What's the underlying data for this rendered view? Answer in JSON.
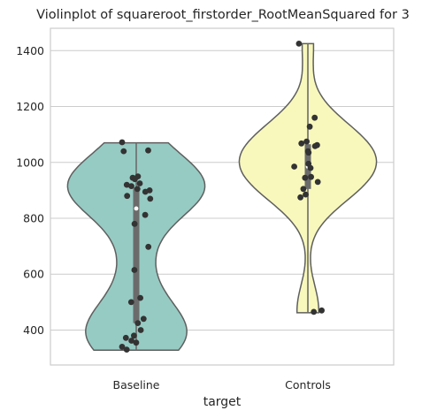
{
  "chart_data": {
    "type": "violin",
    "title": "Violinplot of squareroot_firstorder_RootMeanSquared for 3",
    "xlabel": "target",
    "ylabel": "",
    "ylim": [
      275,
      1480
    ],
    "yticks": [
      400,
      600,
      800,
      1000,
      1200,
      1400
    ],
    "grid": "horizontal",
    "categories": [
      "Baseline",
      "Controls"
    ],
    "colors": {
      "Baseline": "#96cbc3",
      "Controls": "#f8f8bd",
      "outline": "#5f5f5f",
      "points": "#333333",
      "box": "#6b6b6b"
    },
    "series": [
      {
        "name": "Baseline",
        "range": [
          328,
          1070
        ],
        "quartiles": [
          425,
          835,
          910
        ],
        "median": 835,
        "points": [
          1072,
          1043,
          1040,
          950,
          945,
          940,
          925,
          920,
          915,
          905,
          900,
          895,
          880,
          870,
          812,
          780,
          698,
          615,
          515,
          500,
          440,
          425,
          400,
          380,
          372,
          362,
          355,
          340,
          330
        ]
      },
      {
        "name": "Controls",
        "range": [
          462,
          1425
        ],
        "quartiles": [
          905,
          985,
          1065
        ],
        "median": 985,
        "points": [
          1425,
          1160,
          1128,
          1075,
          1068,
          1062,
          1058,
          1040,
          1035,
          995,
          985,
          980,
          948,
          945,
          930,
          905,
          885,
          875,
          470,
          465
        ]
      }
    ]
  }
}
